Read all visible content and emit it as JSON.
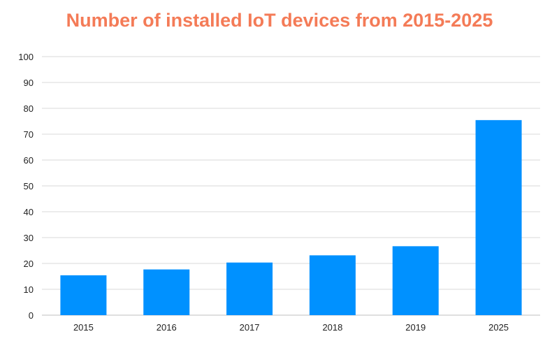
{
  "chart_data": {
    "type": "bar",
    "title": "Number of installed IoT devices from 2015-2025",
    "categories": [
      "2015",
      "2016",
      "2017",
      "2018",
      "2019",
      "2025"
    ],
    "values": [
      15.41,
      17.68,
      20.35,
      23.14,
      26.66,
      75.44
    ],
    "xlabel": "",
    "ylabel": "",
    "ylim": [
      0,
      100
    ],
    "yticks": [
      "0",
      "10",
      "20",
      "30",
      "40",
      "50",
      "60",
      "70",
      "80",
      "90",
      "100"
    ],
    "grid": true,
    "legend": "none",
    "colors": {
      "bar": "#0091FF",
      "title": "#F47B57",
      "grid": "#D9D9D9"
    }
  }
}
